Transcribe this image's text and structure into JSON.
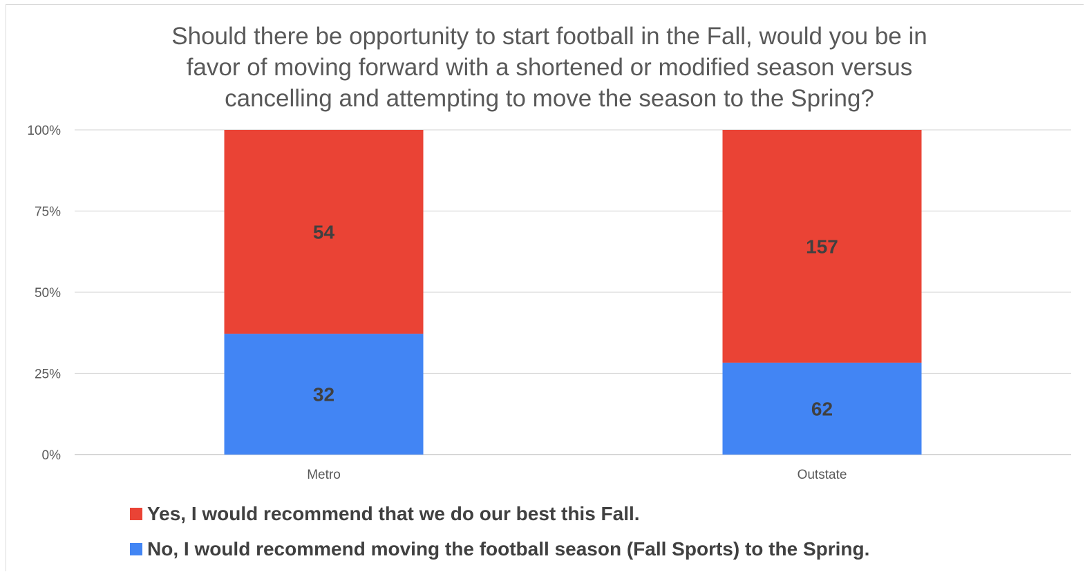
{
  "chart_data": {
    "type": "bar",
    "stacked": "percent",
    "title_lines": [
      "Should there be opportunity to start football in the Fall, would you be in",
      "favor of moving forward with a shortened or modified season versus",
      "cancelling and attempting to move the season to the Spring?"
    ],
    "categories": [
      "Metro",
      "Outstate"
    ],
    "series": [
      {
        "name": "No, I would recommend moving the football season (Fall Sports) to the Spring.",
        "values": [
          32,
          62
        ],
        "color": "#4285f4"
      },
      {
        "name": "Yes, I would recommend that we do our best this Fall.",
        "values": [
          54,
          157
        ],
        "color": "#ea4335"
      }
    ],
    "y_ticks": [
      "0%",
      "25%",
      "50%",
      "75%",
      "100%"
    ],
    "ylim": [
      0,
      100
    ],
    "grid": true,
    "legend_position": "bottom-left"
  }
}
